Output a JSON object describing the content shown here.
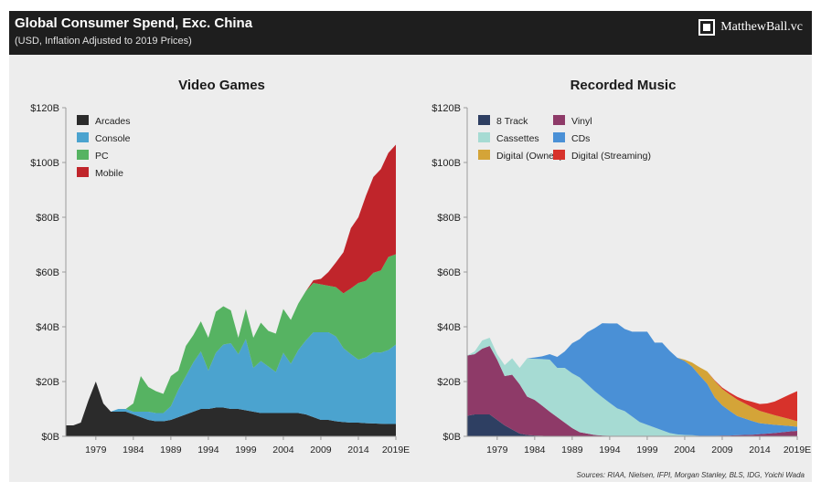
{
  "header": {
    "title": "Global Consumer Spend, Exc. China",
    "subtitle": "(USD, Inflation Adjusted to 2019 Prices)",
    "brand": "MatthewBall.vc",
    "brand_logo_icon": "square-frame-icon"
  },
  "footer": {
    "source": "Sources: RIAA, Nielsen, IFPI, Morgan Stanley, BLS, IDG, Yoichi Wada"
  },
  "chart_data": [
    {
      "type": "area",
      "stacked": true,
      "title": "Video Games",
      "ylim": [
        0,
        120
      ],
      "ytick_values": [
        0,
        20,
        40,
        60,
        80,
        100,
        120
      ],
      "yticks": [
        "$0B",
        "$20B",
        "$40B",
        "$60B",
        "$80B",
        "$100B",
        "$120B"
      ],
      "xlim": [
        1975,
        2019
      ],
      "xtick_values": [
        1979,
        1984,
        1989,
        1994,
        1999,
        2004,
        2009,
        2014,
        2019
      ],
      "xticks": [
        "1979",
        "1984",
        "1989",
        "1994",
        "1999",
        "2004",
        "2009",
        "2014",
        "2019E"
      ],
      "grid": false,
      "legend_position": "top-left",
      "x": [
        1975,
        1976,
        1977,
        1978,
        1979,
        1980,
        1981,
        1982,
        1983,
        1984,
        1985,
        1986,
        1987,
        1988,
        1989,
        1990,
        1991,
        1992,
        1993,
        1994,
        1995,
        1996,
        1997,
        1998,
        1999,
        2000,
        2001,
        2002,
        2003,
        2004,
        2005,
        2006,
        2007,
        2008,
        2009,
        2010,
        2011,
        2012,
        2013,
        2014,
        2015,
        2016,
        2017,
        2018,
        2019
      ],
      "series": [
        {
          "name": "Arcades",
          "color": "#2b2b2b",
          "values": [
            4,
            4,
            5,
            13,
            20,
            12,
            9,
            9,
            9,
            8,
            7,
            6,
            5.5,
            5.5,
            6,
            7,
            8,
            9,
            10,
            10,
            10.5,
            10.5,
            10,
            10,
            9.5,
            9,
            8.5,
            8.5,
            8.5,
            8.5,
            8.5,
            8.5,
            8,
            7,
            6,
            6,
            5.5,
            5.2,
            5,
            5,
            4.8,
            4.7,
            4.6,
            4.5,
            4.5
          ]
        },
        {
          "name": "Console",
          "color": "#4ba3cf",
          "values": [
            0,
            0,
            0,
            0,
            0,
            0,
            0,
            1,
            1,
            1,
            2,
            3,
            3,
            3,
            5,
            10,
            14,
            18,
            21,
            14,
            20,
            23,
            24,
            20,
            26,
            16,
            19,
            17,
            15,
            22,
            18,
            23,
            27,
            31,
            32,
            32,
            31,
            27,
            25,
            23,
            24,
            26,
            26,
            27,
            29
          ]
        },
        {
          "name": "PC",
          "color": "#56b362",
          "values": [
            0,
            0,
            0,
            0,
            0,
            0,
            0,
            0,
            0,
            3,
            13,
            9,
            8,
            7,
            11,
            7,
            11,
            10,
            11,
            12,
            15,
            14,
            12,
            6,
            11,
            11,
            14,
            13,
            14,
            16,
            16,
            17,
            18,
            18,
            17.5,
            17,
            18,
            20,
            24,
            28,
            28,
            29,
            30,
            34,
            33
          ]
        },
        {
          "name": "Mobile",
          "color": "#c0252b",
          "values": [
            0,
            0,
            0,
            0,
            0,
            0,
            0,
            0,
            0,
            0,
            0,
            0,
            0,
            0,
            0,
            0,
            0,
            0,
            0,
            0,
            0,
            0,
            0,
            0,
            0,
            0,
            0,
            0,
            0,
            0,
            0,
            0,
            0,
            1,
            2,
            5,
            9,
            15,
            22,
            24,
            31,
            35,
            37,
            38,
            40
          ]
        }
      ]
    },
    {
      "type": "area",
      "stacked": true,
      "title": "Recorded Music",
      "ylim": [
        0,
        120
      ],
      "ytick_values": [
        0,
        20,
        40,
        60,
        80,
        100,
        120
      ],
      "yticks": [
        "$0B",
        "$20B",
        "$40B",
        "$60B",
        "$80B",
        "$100B",
        "$120B"
      ],
      "xlim": [
        1975,
        2019
      ],
      "xtick_values": [
        1979,
        1984,
        1989,
        1994,
        1999,
        2004,
        2009,
        2014,
        2019
      ],
      "xticks": [
        "1979",
        "1984",
        "1989",
        "1994",
        "1999",
        "2004",
        "2009",
        "2014",
        "2019E"
      ],
      "grid": false,
      "legend_position": "top-left",
      "x": [
        1975,
        1976,
        1977,
        1978,
        1979,
        1980,
        1981,
        1982,
        1983,
        1984,
        1985,
        1986,
        1987,
        1988,
        1989,
        1990,
        1991,
        1992,
        1993,
        1994,
        1995,
        1996,
        1997,
        1998,
        1999,
        2000,
        2001,
        2002,
        2003,
        2004,
        2005,
        2006,
        2007,
        2008,
        2009,
        2010,
        2011,
        2012,
        2013,
        2014,
        2015,
        2016,
        2017,
        2018,
        2019
      ],
      "series": [
        {
          "name": "8 Track",
          "color": "#2e3f62",
          "values": [
            7.5,
            8,
            8,
            8,
            6,
            4,
            2.5,
            1,
            0.5,
            0.3,
            0.2,
            0,
            0,
            0,
            0,
            0,
            0,
            0,
            0,
            0,
            0,
            0,
            0,
            0,
            0,
            0,
            0,
            0,
            0,
            0,
            0,
            0,
            0,
            0,
            0,
            0,
            0,
            0,
            0,
            0,
            0,
            0,
            0,
            0,
            0
          ]
        },
        {
          "name": "Vinyl",
          "color": "#8e3a68",
          "values": [
            22,
            22,
            24,
            25,
            22,
            18,
            20,
            18,
            14,
            13,
            11,
            9,
            7,
            5,
            3,
            1.5,
            1,
            0.5,
            0.3,
            0.2,
            0.2,
            0.2,
            0.2,
            0.2,
            0.2,
            0.2,
            0.2,
            0.2,
            0.2,
            0.2,
            0.2,
            0.2,
            0.2,
            0.2,
            0.3,
            0.3,
            0.4,
            0.5,
            0.6,
            0.8,
            1,
            1.2,
            1.5,
            1.8,
            2
          ]
        },
        {
          "name": "Cassettes",
          "color": "#a6dbd3",
          "values": [
            0,
            1,
            3,
            3,
            2,
            4,
            6,
            6,
            14,
            15,
            17,
            19,
            18,
            20,
            20,
            20,
            18,
            16,
            14,
            12,
            10,
            9,
            7,
            5,
            4,
            3,
            2,
            1,
            0.5,
            0.3,
            0.2,
            0,
            0,
            0,
            0,
            0,
            0,
            0,
            0,
            0,
            0,
            0,
            0,
            0,
            0
          ]
        },
        {
          "name": "CDs",
          "color": "#4a90d6",
          "values": [
            0,
            0,
            0,
            0,
            0,
            0,
            0,
            0,
            0,
            0.5,
            1,
            2,
            4,
            6,
            11,
            14,
            19,
            23,
            27,
            29,
            31,
            30,
            31,
            33,
            34,
            31,
            32,
            30,
            28,
            27,
            25,
            22,
            19,
            14,
            11,
            9,
            7,
            6,
            5,
            4,
            3.5,
            3,
            2.5,
            2,
            1.5
          ]
        },
        {
          "name": "Digital (Owned)",
          "color": "#d4a438",
          "values": [
            0,
            0,
            0,
            0,
            0,
            0,
            0,
            0,
            0,
            0,
            0,
            0,
            0,
            0,
            0,
            0,
            0,
            0,
            0,
            0,
            0,
            0,
            0,
            0,
            0,
            0,
            0,
            0,
            0,
            0.5,
            1.5,
            3,
            4.5,
            6,
            6,
            6,
            6,
            5.5,
            5,
            4.5,
            4,
            3.5,
            3,
            2.5,
            2
          ]
        },
        {
          "name": "Digital (Streaming)",
          "color": "#d7322b",
          "values": [
            0,
            0,
            0,
            0,
            0,
            0,
            0,
            0,
            0,
            0,
            0,
            0,
            0,
            0,
            0,
            0,
            0,
            0,
            0,
            0,
            0,
            0,
            0,
            0,
            0,
            0,
            0,
            0,
            0,
            0,
            0,
            0,
            0,
            0.2,
            0.5,
            0.7,
            1,
            1.3,
            2,
            2.5,
            3.5,
            5,
            7,
            9,
            11
          ]
        }
      ]
    }
  ]
}
